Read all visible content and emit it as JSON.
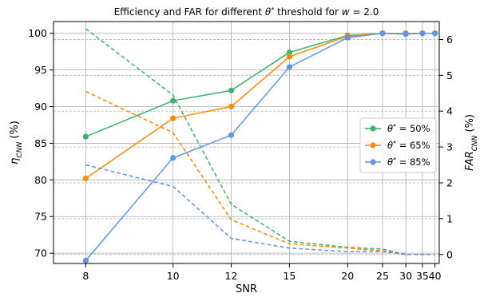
{
  "chart_data": {
    "type": "line",
    "title": "Efficiency and FAR for different θ* threshold for w = 2.0",
    "title_main": "Efficiency and FAR for different ",
    "title_theta": "θ",
    "title_theta_sup": "*",
    "title_mid": " threshold for ",
    "title_w": "w",
    "title_end": " = 2.0",
    "xlabel": "SNR",
    "ylabel_left": {
      "base": "η",
      "sub": "CNN",
      "suffix": " (%)"
    },
    "ylabel_right": {
      "base": "FAR",
      "sub": "CNN",
      "suffix": " (%)"
    },
    "x": [
      8,
      10,
      12,
      15,
      20,
      25,
      30,
      35,
      40
    ],
    "x_scale": "reciprocal",
    "xlim": [
      7.45,
      42.1
    ],
    "ylim_left": [
      68.6,
      101.6
    ],
    "ylim_right": [
      -0.25,
      6.5
    ],
    "yticks_left": [
      70,
      75,
      80,
      85,
      90,
      95,
      100
    ],
    "yticks_right": [
      0,
      1,
      2,
      3,
      4,
      5,
      6
    ],
    "grid": true,
    "legend_position": "center-right",
    "series": [
      {
        "name": "θ* = 50%",
        "label_greek": "θ",
        "label_sup": "*",
        "label_value": " = 50%",
        "color": "#3cb371",
        "efficiency": [
          85.9,
          90.8,
          92.2,
          97.4,
          99.7,
          100.0,
          99.9,
          100.0,
          100.0
        ],
        "far": [
          6.3,
          4.45,
          1.4,
          0.37,
          0.2,
          0.15,
          0.0,
          0.0,
          0.0
        ]
      },
      {
        "name": "θ* = 65%",
        "label_greek": "θ",
        "label_sup": "*",
        "label_value": " = 65%",
        "color": "#ff8c00",
        "efficiency": [
          80.2,
          88.4,
          90.0,
          96.8,
          99.6,
          100.0,
          100.0,
          100.0,
          100.0
        ],
        "far": [
          4.55,
          3.4,
          0.97,
          0.3,
          0.18,
          0.1,
          0.0,
          0.0,
          0.0
        ]
      },
      {
        "name": "θ* = 85%",
        "label_greek": "θ",
        "label_sup": "*",
        "label_value": " = 85%",
        "color": "#6495ed",
        "efficiency": [
          69.0,
          83.0,
          86.1,
          95.4,
          99.4,
          100.0,
          99.9,
          100.0,
          100.0
        ],
        "far": [
          2.5,
          1.9,
          0.45,
          0.18,
          0.08,
          0.08,
          0.0,
          0.0,
          0.0
        ]
      }
    ]
  }
}
